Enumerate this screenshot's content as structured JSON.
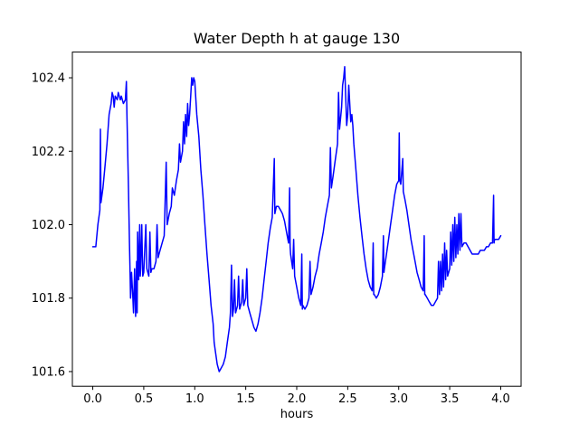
{
  "figure": {
    "title": "Water Depth h at gauge 130",
    "xlabel": "hours"
  },
  "chart_data": {
    "type": "line",
    "title": "Water Depth h at gauge 130",
    "xlabel": "hours",
    "ylabel": "",
    "line_color": "#0000ff",
    "line_width": 1.5,
    "grid": false,
    "legend": "none",
    "xlim": [
      -0.2,
      4.2
    ],
    "ylim": [
      101.56,
      102.47
    ],
    "xticks": [
      0.0,
      0.5,
      1.0,
      1.5,
      2.0,
      2.5,
      3.0,
      3.5,
      4.0
    ],
    "xtick_labels": [
      "0.0",
      "0.5",
      "1.0",
      "1.5",
      "2.0",
      "2.5",
      "3.0",
      "3.5",
      "4.0"
    ],
    "yticks": [
      101.6,
      101.8,
      102.0,
      102.2,
      102.4
    ],
    "ytick_labels": [
      "101.6",
      "101.8",
      "102.0",
      "102.2",
      "102.4"
    ],
    "points": [
      [
        0.0,
        101.94
      ],
      [
        0.03,
        101.94
      ],
      [
        0.05,
        102.0
      ],
      [
        0.07,
        102.04
      ],
      [
        0.075,
        102.26
      ],
      [
        0.08,
        102.06
      ],
      [
        0.1,
        102.1
      ],
      [
        0.12,
        102.16
      ],
      [
        0.14,
        102.22
      ],
      [
        0.16,
        102.3
      ],
      [
        0.18,
        102.33
      ],
      [
        0.19,
        102.36
      ],
      [
        0.2,
        102.35
      ],
      [
        0.21,
        102.32
      ],
      [
        0.22,
        102.35
      ],
      [
        0.24,
        102.34
      ],
      [
        0.25,
        102.36
      ],
      [
        0.27,
        102.34
      ],
      [
        0.28,
        102.35
      ],
      [
        0.3,
        102.33
      ],
      [
        0.32,
        102.34
      ],
      [
        0.33,
        102.39
      ],
      [
        0.335,
        102.3
      ],
      [
        0.35,
        102.1
      ],
      [
        0.36,
        101.95
      ],
      [
        0.365,
        101.88
      ],
      [
        0.37,
        101.8
      ],
      [
        0.38,
        101.87
      ],
      [
        0.39,
        101.82
      ],
      [
        0.4,
        101.76
      ],
      [
        0.41,
        101.88
      ],
      [
        0.42,
        101.75
      ],
      [
        0.43,
        101.9
      ],
      [
        0.435,
        101.76
      ],
      [
        0.44,
        101.98
      ],
      [
        0.45,
        101.85
      ],
      [
        0.46,
        102.0
      ],
      [
        0.465,
        101.86
      ],
      [
        0.47,
        101.88
      ],
      [
        0.48,
        102.0
      ],
      [
        0.49,
        101.86
      ],
      [
        0.5,
        101.87
      ],
      [
        0.52,
        102.0
      ],
      [
        0.53,
        101.88
      ],
      [
        0.55,
        101.86
      ],
      [
        0.56,
        101.98
      ],
      [
        0.57,
        101.87
      ],
      [
        0.58,
        101.88
      ],
      [
        0.6,
        101.88
      ],
      [
        0.62,
        101.9
      ],
      [
        0.63,
        102.0
      ],
      [
        0.64,
        101.91
      ],
      [
        0.66,
        101.93
      ],
      [
        0.68,
        101.95
      ],
      [
        0.7,
        101.97
      ],
      [
        0.72,
        102.17
      ],
      [
        0.73,
        102.0
      ],
      [
        0.75,
        102.03
      ],
      [
        0.77,
        102.05
      ],
      [
        0.78,
        102.1
      ],
      [
        0.8,
        102.08
      ],
      [
        0.82,
        102.12
      ],
      [
        0.84,
        102.15
      ],
      [
        0.85,
        102.22
      ],
      [
        0.86,
        102.17
      ],
      [
        0.88,
        102.2
      ],
      [
        0.89,
        102.28
      ],
      [
        0.9,
        102.22
      ],
      [
        0.91,
        102.3
      ],
      [
        0.92,
        102.24
      ],
      [
        0.93,
        102.33
      ],
      [
        0.94,
        102.27
      ],
      [
        0.95,
        102.3
      ],
      [
        0.96,
        102.35
      ],
      [
        0.97,
        102.4
      ],
      [
        0.98,
        102.38
      ],
      [
        0.99,
        102.4
      ],
      [
        1.0,
        102.39
      ],
      [
        1.02,
        102.3
      ],
      [
        1.04,
        102.24
      ],
      [
        1.06,
        102.15
      ],
      [
        1.08,
        102.08
      ],
      [
        1.1,
        102.0
      ],
      [
        1.12,
        101.92
      ],
      [
        1.14,
        101.85
      ],
      [
        1.16,
        101.78
      ],
      [
        1.18,
        101.73
      ],
      [
        1.19,
        101.68
      ],
      [
        1.2,
        101.66
      ],
      [
        1.22,
        101.62
      ],
      [
        1.24,
        101.6
      ],
      [
        1.26,
        101.61
      ],
      [
        1.28,
        101.62
      ],
      [
        1.3,
        101.64
      ],
      [
        1.32,
        101.68
      ],
      [
        1.34,
        101.72
      ],
      [
        1.35,
        101.76
      ],
      [
        1.36,
        101.89
      ],
      [
        1.37,
        101.75
      ],
      [
        1.38,
        101.77
      ],
      [
        1.39,
        101.85
      ],
      [
        1.4,
        101.76
      ],
      [
        1.42,
        101.78
      ],
      [
        1.43,
        101.86
      ],
      [
        1.44,
        101.77
      ],
      [
        1.46,
        101.79
      ],
      [
        1.47,
        101.85
      ],
      [
        1.48,
        101.78
      ],
      [
        1.5,
        101.8
      ],
      [
        1.51,
        101.88
      ],
      [
        1.52,
        101.78
      ],
      [
        1.54,
        101.76
      ],
      [
        1.56,
        101.74
      ],
      [
        1.58,
        101.72
      ],
      [
        1.6,
        101.71
      ],
      [
        1.62,
        101.73
      ],
      [
        1.64,
        101.76
      ],
      [
        1.66,
        101.8
      ],
      [
        1.68,
        101.85
      ],
      [
        1.7,
        101.9
      ],
      [
        1.72,
        101.95
      ],
      [
        1.74,
        101.99
      ],
      [
        1.76,
        102.02
      ],
      [
        1.78,
        102.18
      ],
      [
        1.785,
        102.03
      ],
      [
        1.8,
        102.05
      ],
      [
        1.82,
        102.05
      ],
      [
        1.84,
        102.04
      ],
      [
        1.86,
        102.03
      ],
      [
        1.88,
        102.01
      ],
      [
        1.9,
        101.98
      ],
      [
        1.92,
        101.95
      ],
      [
        1.93,
        102.1
      ],
      [
        1.935,
        101.94
      ],
      [
        1.94,
        101.92
      ],
      [
        1.96,
        101.88
      ],
      [
        1.97,
        101.96
      ],
      [
        1.98,
        101.86
      ],
      [
        2.0,
        101.83
      ],
      [
        2.02,
        101.8
      ],
      [
        2.04,
        101.78
      ],
      [
        2.05,
        101.92
      ],
      [
        2.055,
        101.77
      ],
      [
        2.06,
        101.78
      ],
      [
        2.08,
        101.77
      ],
      [
        2.1,
        101.78
      ],
      [
        2.12,
        101.8
      ],
      [
        2.13,
        101.9
      ],
      [
        2.14,
        101.81
      ],
      [
        2.16,
        101.83
      ],
      [
        2.18,
        101.86
      ],
      [
        2.2,
        101.88
      ],
      [
        2.22,
        101.92
      ],
      [
        2.24,
        101.95
      ],
      [
        2.26,
        101.98
      ],
      [
        2.28,
        102.02
      ],
      [
        2.3,
        102.05
      ],
      [
        2.32,
        102.08
      ],
      [
        2.33,
        102.21
      ],
      [
        2.34,
        102.1
      ],
      [
        2.36,
        102.14
      ],
      [
        2.38,
        102.18
      ],
      [
        2.4,
        102.22
      ],
      [
        2.41,
        102.36
      ],
      [
        2.42,
        102.26
      ],
      [
        2.44,
        102.32
      ],
      [
        2.45,
        102.38
      ],
      [
        2.46,
        102.4
      ],
      [
        2.47,
        102.43
      ],
      [
        2.48,
        102.35
      ],
      [
        2.49,
        102.27
      ],
      [
        2.5,
        102.3
      ],
      [
        2.51,
        102.38
      ],
      [
        2.52,
        102.33
      ],
      [
        2.53,
        102.28
      ],
      [
        2.54,
        102.3
      ],
      [
        2.55,
        102.27
      ],
      [
        2.56,
        102.22
      ],
      [
        2.58,
        102.15
      ],
      [
        2.6,
        102.08
      ],
      [
        2.62,
        102.02
      ],
      [
        2.64,
        101.97
      ],
      [
        2.66,
        101.92
      ],
      [
        2.68,
        101.88
      ],
      [
        2.7,
        101.85
      ],
      [
        2.72,
        101.83
      ],
      [
        2.74,
        101.82
      ],
      [
        2.75,
        101.95
      ],
      [
        2.755,
        101.81
      ],
      [
        2.76,
        101.81
      ],
      [
        2.78,
        101.8
      ],
      [
        2.8,
        101.81
      ],
      [
        2.82,
        101.83
      ],
      [
        2.84,
        101.86
      ],
      [
        2.85,
        101.97
      ],
      [
        2.855,
        101.87
      ],
      [
        2.86,
        101.88
      ],
      [
        2.88,
        101.92
      ],
      [
        2.9,
        101.96
      ],
      [
        2.92,
        102.0
      ],
      [
        2.94,
        102.04
      ],
      [
        2.96,
        102.08
      ],
      [
        2.98,
        102.11
      ],
      [
        3.0,
        102.12
      ],
      [
        3.005,
        102.25
      ],
      [
        3.01,
        102.12
      ],
      [
        3.02,
        102.11
      ],
      [
        3.04,
        102.18
      ],
      [
        3.045,
        102.09
      ],
      [
        3.06,
        102.07
      ],
      [
        3.08,
        102.04
      ],
      [
        3.1,
        102.0
      ],
      [
        3.12,
        101.96
      ],
      [
        3.14,
        101.93
      ],
      [
        3.16,
        101.9
      ],
      [
        3.18,
        101.87
      ],
      [
        3.2,
        101.85
      ],
      [
        3.22,
        101.83
      ],
      [
        3.24,
        101.82
      ],
      [
        3.25,
        101.97
      ],
      [
        3.255,
        101.81
      ],
      [
        3.26,
        101.81
      ],
      [
        3.28,
        101.8
      ],
      [
        3.3,
        101.79
      ],
      [
        3.32,
        101.78
      ],
      [
        3.34,
        101.78
      ],
      [
        3.36,
        101.79
      ],
      [
        3.38,
        101.8
      ],
      [
        3.39,
        101.9
      ],
      [
        3.4,
        101.81
      ],
      [
        3.41,
        101.9
      ],
      [
        3.42,
        101.82
      ],
      [
        3.43,
        101.92
      ],
      [
        3.44,
        101.83
      ],
      [
        3.45,
        101.95
      ],
      [
        3.46,
        101.85
      ],
      [
        3.47,
        101.93
      ],
      [
        3.48,
        101.86
      ],
      [
        3.5,
        101.88
      ],
      [
        3.51,
        101.98
      ],
      [
        3.52,
        101.89
      ],
      [
        3.53,
        102.0
      ],
      [
        3.54,
        101.9
      ],
      [
        3.55,
        102.02
      ],
      [
        3.56,
        101.91
      ],
      [
        3.57,
        102.0
      ],
      [
        3.58,
        101.92
      ],
      [
        3.59,
        102.03
      ],
      [
        3.6,
        101.93
      ],
      [
        3.61,
        102.03
      ],
      [
        3.62,
        101.94
      ],
      [
        3.64,
        101.95
      ],
      [
        3.66,
        101.95
      ],
      [
        3.68,
        101.94
      ],
      [
        3.7,
        101.93
      ],
      [
        3.72,
        101.92
      ],
      [
        3.74,
        101.92
      ],
      [
        3.76,
        101.92
      ],
      [
        3.78,
        101.92
      ],
      [
        3.8,
        101.93
      ],
      [
        3.82,
        101.93
      ],
      [
        3.84,
        101.93
      ],
      [
        3.86,
        101.94
      ],
      [
        3.88,
        101.94
      ],
      [
        3.9,
        101.95
      ],
      [
        3.92,
        101.95
      ],
      [
        3.93,
        102.08
      ],
      [
        3.935,
        101.95
      ],
      [
        3.94,
        101.96
      ],
      [
        3.96,
        101.96
      ],
      [
        3.98,
        101.96
      ],
      [
        4.0,
        101.97
      ]
    ]
  }
}
